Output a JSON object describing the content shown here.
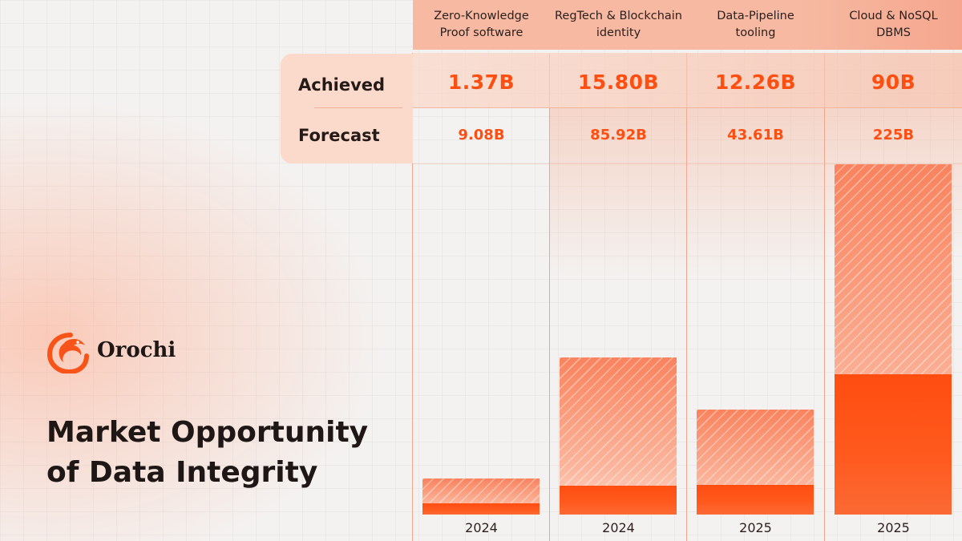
{
  "brand": {
    "name": "Orochi",
    "logo_icon": "dragon-ring-logo-icon"
  },
  "title": {
    "line1": "Market Opportunity",
    "line2": "of Data Integrity"
  },
  "row_labels": {
    "achieved": "Achieved",
    "forecast": "Forecast"
  },
  "colors": {
    "accent": "#FD4F12",
    "forecast_fill": "#F9835E",
    "header_band": "#F7B9A2"
  },
  "chart_data": {
    "type": "bar",
    "categories": [
      "Zero-Knowledge Proof software",
      "RegTech & Blockchain identity",
      "Data-Pipeline tooling",
      "Cloud & NoSQL DBMS"
    ],
    "category_lines": [
      [
        "Zero-Knowledge",
        "Proof software"
      ],
      [
        "RegTech & Blockchain",
        "identity"
      ],
      [
        "Data-Pipeline",
        "tooling"
      ],
      [
        "Cloud & NoSQL",
        "DBMS"
      ]
    ],
    "years": [
      "2024",
      "2024",
      "2025",
      "2025"
    ],
    "series": [
      {
        "name": "Achieved",
        "values": [
          1.37,
          15.8,
          12.26,
          90
        ],
        "labels": [
          "1.37B",
          "15.80B",
          "12.26B",
          "90B"
        ]
      },
      {
        "name": "Forecast",
        "values": [
          9.08,
          85.92,
          43.61,
          225
        ],
        "labels": [
          "9.08B",
          "85.92B",
          "43.61B",
          "225B"
        ]
      }
    ],
    "unit": "B",
    "overlay": true,
    "legend": "left table rows",
    "grid": false
  }
}
